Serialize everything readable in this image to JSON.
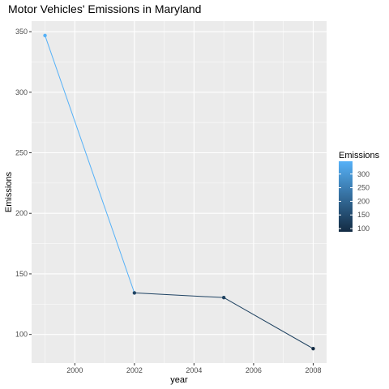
{
  "chart_data": {
    "type": "line",
    "title": "Motor Vehicles' Emissions in Maryland",
    "xlabel": "year",
    "ylabel": "Emissions",
    "x": [
      1999,
      2002,
      2005,
      2008
    ],
    "y": [
      346.82,
      134.31,
      130.43,
      88.28
    ],
    "xlim": [
      1998.55,
      2008.45
    ],
    "ylim": [
      76.35,
      358.75
    ],
    "x_ticks": [
      2000,
      2002,
      2004,
      2006,
      2008
    ],
    "x_tick_labels": [
      "2000",
      "2002",
      "2004",
      "2006",
      "2008"
    ],
    "y_ticks": [
      100,
      150,
      200,
      250,
      300,
      350
    ],
    "y_tick_labels": [
      "100",
      "150",
      "200",
      "250",
      "300",
      "350"
    ],
    "grid": true,
    "background": "#EBEBEB",
    "legend": {
      "title": "Emissions",
      "placement": "right",
      "type": "colorbar",
      "range": [
        88.28,
        346.82
      ],
      "ticks": [
        100,
        150,
        200,
        250,
        300
      ],
      "tick_labels": [
        "100",
        "150",
        "200",
        "250",
        "300"
      ],
      "low_color": "#132B43",
      "high_color": "#56B1F7"
    }
  }
}
